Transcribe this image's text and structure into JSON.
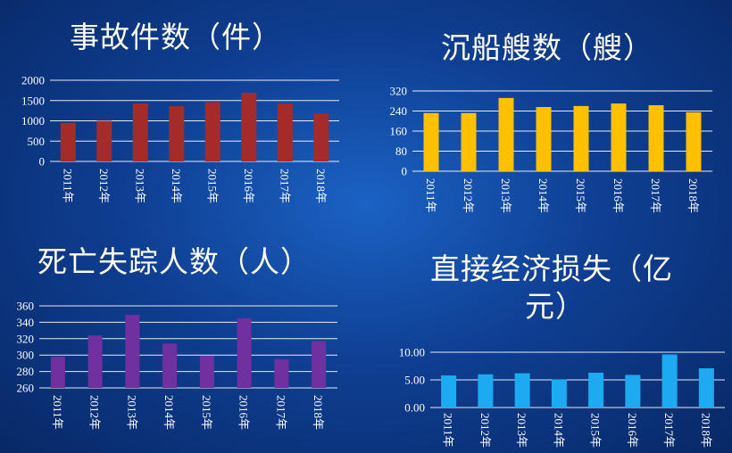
{
  "chart_data": [
    {
      "type": "bar",
      "title": "事故件数（件）",
      "categories": [
        "2011年",
        "2012年",
        "2013年",
        "2014年",
        "2015年",
        "2016年",
        "2017年",
        "2018年"
      ],
      "values": [
        950,
        1000,
        1430,
        1360,
        1460,
        1690,
        1430,
        1180
      ],
      "ylim": [
        0,
        2000
      ],
      "yticks": [
        "0",
        "500",
        "1000",
        "1500",
        "2000"
      ],
      "ytick_values": [
        0,
        500,
        1000,
        1500,
        2000
      ],
      "color": "#a52a2a",
      "grid": true,
      "xlabel": "",
      "ylabel": ""
    },
    {
      "type": "bar",
      "title": "沉船艘数（艘）",
      "categories": [
        "2011年",
        "2012年",
        "2013年",
        "2014年",
        "2015年",
        "2016年",
        "2017年",
        "2018年"
      ],
      "values": [
        232,
        232,
        292,
        256,
        260,
        270,
        263,
        235
      ],
      "ylim": [
        0,
        320
      ],
      "yticks": [
        "0",
        "80",
        "160",
        "240",
        "320"
      ],
      "ytick_values": [
        0,
        80,
        160,
        240,
        320
      ],
      "color": "#ffc000",
      "grid": true,
      "xlabel": "",
      "ylabel": ""
    },
    {
      "type": "bar",
      "title": "死亡失踪人数（人）",
      "categories": [
        "2011年",
        "2012年",
        "2013年",
        "2014年",
        "2015年",
        "2016年",
        "2017年",
        "2018年"
      ],
      "values": [
        298,
        324,
        349,
        314,
        299,
        345,
        295,
        317
      ],
      "ylim": [
        260,
        360
      ],
      "yticks": [
        "260",
        "280",
        "300",
        "320",
        "340",
        "360"
      ],
      "ytick_values": [
        260,
        280,
        300,
        320,
        340,
        360
      ],
      "color": "#7030a0",
      "grid": true,
      "xlabel": "",
      "ylabel": ""
    },
    {
      "type": "bar",
      "title_line1": "直接经济损失（亿",
      "title_line2": "元）",
      "categories": [
        "2011年",
        "2012年",
        "2013年",
        "2014年",
        "2015年",
        "2016年",
        "2017年",
        "2018年"
      ],
      "values": [
        5.8,
        6.0,
        6.2,
        5.1,
        6.3,
        5.9,
        9.6,
        7.1
      ],
      "ylim": [
        0,
        10
      ],
      "yticks": [
        "0.00",
        "5.00",
        "10.00"
      ],
      "ytick_values": [
        0,
        5,
        10
      ],
      "color": "#1eaaf1",
      "grid": true,
      "xlabel": "",
      "ylabel": ""
    }
  ]
}
